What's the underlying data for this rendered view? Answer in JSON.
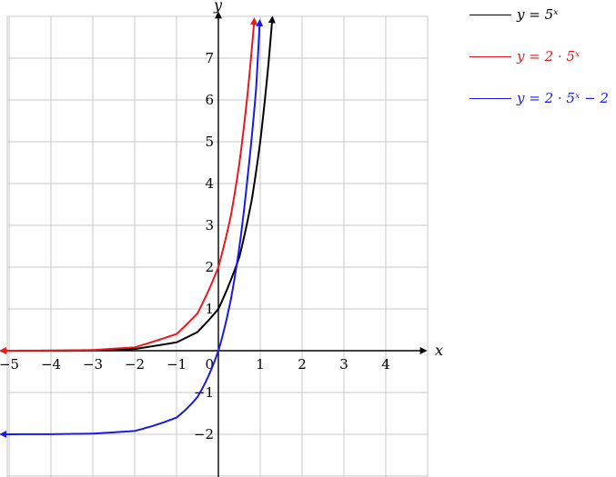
{
  "chart_data": {
    "type": "line",
    "title": "",
    "xlabel": "x",
    "ylabel": "y",
    "xlim": [
      -5.2,
      5.0
    ],
    "ylim": [
      -3.1,
      8.3
    ],
    "x_ticks": [
      -5,
      -4,
      -3,
      -2,
      -1,
      1,
      2,
      3,
      4
    ],
    "x_tick_labels": [
      "−5",
      "−4",
      "−3",
      "−2",
      "−1",
      "1",
      "2",
      "3",
      "4"
    ],
    "y_ticks": [
      -2,
      -1,
      1,
      2,
      3,
      4,
      5,
      6,
      7
    ],
    "y_tick_labels": [
      "−2",
      "−1",
      "1",
      "2",
      "3",
      "4",
      "5",
      "6",
      "7"
    ],
    "origin_label": "0",
    "grid": true,
    "legend_position": "top-right, outside plot",
    "series": [
      {
        "name": "y = 5^x",
        "legend_label": "y = 5ˣ",
        "color": "#000000",
        "x": [
          -5.2,
          -4,
          -3,
          -2,
          -1,
          -0.5,
          0,
          0.5,
          0.8,
          1,
          1.2,
          1.29
        ],
        "y": [
          0.0002,
          0.0016,
          0.008,
          0.04,
          0.2,
          0.447,
          1,
          2.236,
          3.624,
          5,
          6.9,
          7.98
        ]
      },
      {
        "name": "y = 2·5^x",
        "legend_label": "y = 2 · 5ˣ",
        "color": "#e8191e",
        "x": [
          -5.2,
          -4,
          -3,
          -2,
          -1,
          -0.5,
          0,
          0.3,
          0.5,
          0.7,
          0.86
        ],
        "y": [
          0.0005,
          0.0032,
          0.016,
          0.08,
          0.4,
          0.894,
          2,
          3.239,
          4.472,
          6.17,
          7.94
        ]
      },
      {
        "name": "y = 2·5^x − 2",
        "legend_label": "y = 2 · 5ˣ − 2",
        "color": "#1a1ae6",
        "x": [
          -5.2,
          -4,
          -3,
          -2,
          -1,
          -0.5,
          0,
          0.3,
          0.5,
          0.7,
          0.9,
          0.99
        ],
        "y": [
          -1.9995,
          -1.9968,
          -1.984,
          -1.92,
          -1.6,
          -1.106,
          0,
          1.239,
          2.472,
          4.17,
          6.25,
          7.9
        ]
      }
    ]
  }
}
